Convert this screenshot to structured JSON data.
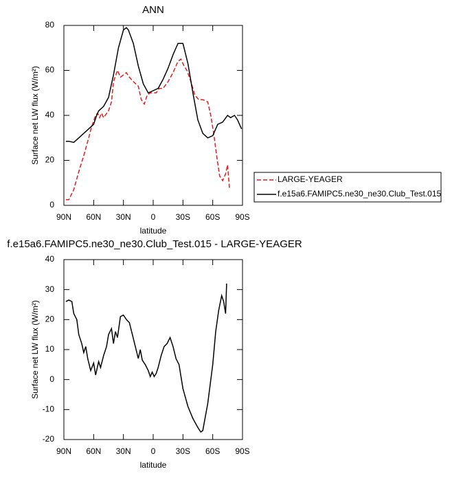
{
  "chart_data": [
    {
      "type": "line",
      "title": "ANN",
      "xlabel": "latitude",
      "ylabel": "Surface net LW flux (W/m²)",
      "xlim": [
        90,
        -90
      ],
      "ylim": [
        0,
        80
      ],
      "xticks": [
        {
          "value": 90,
          "label": "90N"
        },
        {
          "value": 60,
          "label": "60N"
        },
        {
          "value": 30,
          "label": "30N"
        },
        0,
        {
          "value": -30,
          "label": "30S"
        },
        {
          "value": -60,
          "label": "60S"
        },
        {
          "value": -90,
          "label": "90S"
        }
      ],
      "yticks": [
        0,
        20,
        40,
        60,
        80
      ],
      "series": [
        {
          "name": "LARGE-YEAGER",
          "color": "#e41a1c",
          "line_style": "dashed",
          "x": [
            88,
            85,
            80,
            75,
            70,
            65,
            62,
            58,
            56,
            54,
            52,
            50,
            45,
            42,
            40,
            36,
            33,
            30,
            27,
            24,
            20,
            15,
            12,
            9,
            6,
            3,
            0,
            -3,
            -6,
            -10,
            -15,
            -20,
            -25,
            -28,
            -31,
            -34,
            -38,
            -42,
            -46,
            -50,
            -55,
            -58,
            -61,
            -64,
            -67,
            -70,
            -73,
            -75,
            -77
          ],
          "values": [
            2.5,
            2.5,
            7,
            15,
            22,
            30,
            35,
            40,
            41,
            39,
            41,
            39,
            42,
            46,
            55,
            60,
            57,
            58,
            59,
            57,
            55,
            53,
            47,
            45,
            49,
            50,
            50,
            50,
            52,
            52,
            55,
            59,
            64,
            65,
            62,
            60,
            55,
            49,
            47,
            47,
            46,
            40,
            32,
            22,
            13,
            11,
            14,
            18,
            7
          ]
        },
        {
          "name": "f.e15a6.FAMIPC5.ne30_ne30.Club_Test.015",
          "color": "#000000",
          "line_style": "solid",
          "x": [
            88,
            85,
            80,
            75,
            70,
            65,
            60,
            57,
            55,
            50,
            45,
            40,
            35,
            30,
            27,
            25,
            20,
            15,
            10,
            5,
            0,
            -5,
            -10,
            -15,
            -20,
            -25,
            -30,
            -35,
            -40,
            -45,
            -50,
            -55,
            -60,
            -65,
            -70,
            -75,
            -78,
            -82,
            -85,
            -89
          ],
          "values": [
            28.5,
            28.5,
            28,
            30,
            32,
            34,
            36,
            40,
            42,
            44,
            48,
            58,
            70,
            78,
            79,
            78,
            72,
            62,
            54,
            50,
            51,
            52,
            56,
            61,
            67,
            72,
            72,
            63,
            50,
            38,
            32,
            30,
            31,
            36,
            37,
            40,
            39,
            40,
            38,
            34
          ]
        }
      ]
    },
    {
      "type": "line",
      "title": "f.e15a6.FAMIPC5.ne30_ne30.Club_Test.015 - LARGE-YEAGER",
      "xlabel": "latitude",
      "ylabel": "Surface net LW flux (W/m²)",
      "xlim": [
        90,
        -90
      ],
      "ylim": [
        -20,
        40
      ],
      "xticks": [
        {
          "value": 90,
          "label": "90N"
        },
        {
          "value": 60,
          "label": "60N"
        },
        {
          "value": 30,
          "label": "30N"
        },
        0,
        {
          "value": -30,
          "label": "30S"
        },
        {
          "value": -60,
          "label": "60S"
        },
        {
          "value": -90,
          "label": "90S"
        }
      ],
      "yticks": [
        -20,
        -10,
        0,
        10,
        20,
        30,
        40
      ],
      "series": [
        {
          "color": "#000000",
          "line_style": "solid",
          "x": [
            88,
            85,
            82,
            80,
            77,
            75,
            72,
            70,
            68,
            66,
            63,
            60,
            58,
            55,
            53,
            50,
            47,
            45,
            42,
            40,
            38,
            36,
            33,
            30,
            27,
            24,
            21,
            18,
            15,
            13,
            11,
            8,
            5,
            3,
            1,
            -1,
            -3,
            -5,
            -8,
            -11,
            -14,
            -17,
            -20,
            -23,
            -26,
            -30,
            -35,
            -40,
            -45,
            -48,
            -50,
            -55,
            -60,
            -63,
            -66,
            -69,
            -71,
            -73,
            -74
          ],
          "values": [
            26,
            26.5,
            26,
            22,
            20,
            15,
            12,
            9,
            11,
            7,
            3,
            5.5,
            1.5,
            6,
            4,
            8,
            11,
            15,
            17,
            12,
            16,
            14,
            21,
            21.5,
            20,
            19,
            15,
            11,
            7,
            10,
            6.5,
            5,
            3,
            1,
            2.5,
            1,
            2,
            4,
            8,
            11,
            12,
            14,
            11,
            7,
            5,
            -3,
            -9,
            -13,
            -16,
            -17.5,
            -17,
            -8,
            5,
            16,
            23,
            28,
            26,
            22,
            32
          ]
        }
      ]
    }
  ]
}
